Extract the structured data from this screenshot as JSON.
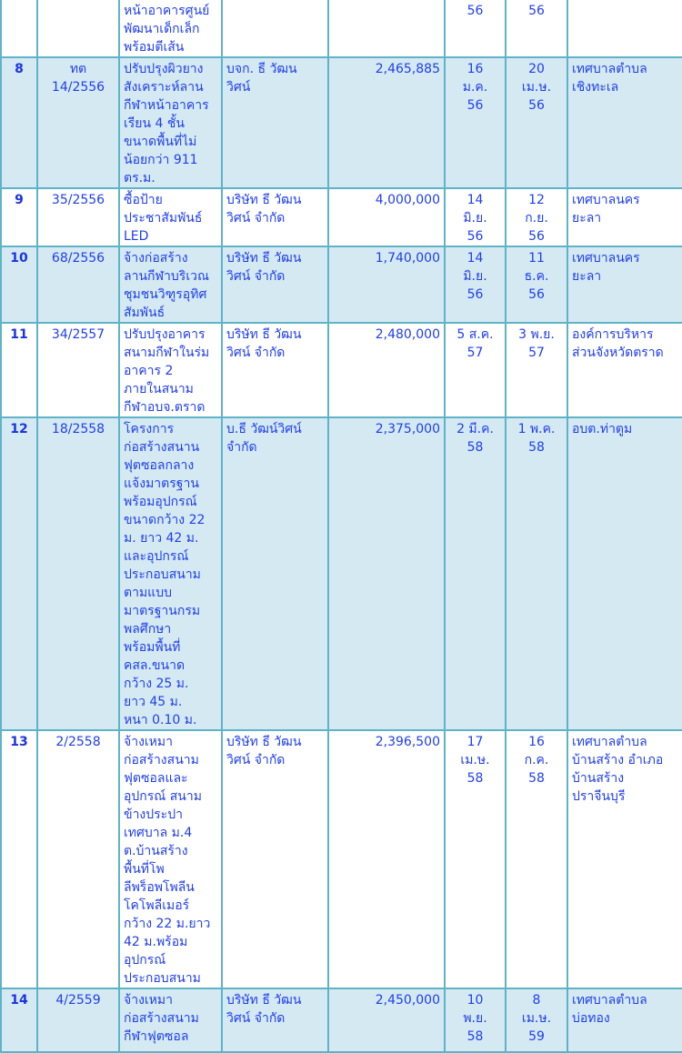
{
  "table": {
    "rows": [
      {
        "no": "",
        "code": "",
        "project": "หน้าอาคารศูนย์\nพัฒนาเด็กเล็ก\nพร้อมตีเส้น",
        "contractor": "",
        "amount": "",
        "start": "56",
        "end": "56",
        "agency": "",
        "bg": "white"
      },
      {
        "no": "8",
        "code": "ทต\n14/2556",
        "project": "ปรับปรุงผิวยาง\nสังเคราะห์ลาน\nกีฬาหน้าอาคาร\nเรียน 4 ชั้น\nขนาดพื้นที่ไม่\nน้อยกว่า 911\nตร.ม.",
        "contractor": "บจก. ธี วัฒน\nวิศน์",
        "amount": "2,465,885",
        "start": "16\nม.ค.\n56",
        "end": "20\nเม.ษ.\n56",
        "agency": "เทศบาลตำบล\nเชิงทะเล",
        "bg": "blue"
      },
      {
        "no": "9",
        "code": "35/2556",
        "project": "ซื้อป้าย\nประชาสัมพันธ์\nLED",
        "contractor": "บริษัท ธี วัฒน\nวิศน์ จำกัด",
        "amount": "4,000,000",
        "start": "14\nมิ.ย.\n56",
        "end": "12\nก.ย.\n56",
        "agency": "เทศบาลนคร\nยะลา",
        "bg": "white"
      },
      {
        "no": "10",
        "code": "68/2556",
        "project": "จ้างก่อสร้าง\nลานกีฬาบริเวณ\nชุมชนวิฑูรอุทิศ\nสัมพันธ์",
        "contractor": "บริษัท ธี วัฒน\nวิศน์ จำกัด",
        "amount": "1,740,000",
        "start": "14\nมิ.ย.\n56",
        "end": "11\nธ.ค.\n56",
        "agency": "เทศบาลนคร\nยะลา",
        "bg": "blue"
      },
      {
        "no": "11",
        "code": "34/2557",
        "project": "ปรับปรุงอาคาร\nสนามกีฬาในร่ม\nอาคาร 2\nภายในสนาม\nกีฬาอบจ.ตราด",
        "contractor": "บริษัท ธี วัฒน\nวิศน์ จำกัด",
        "amount": "2,480,000",
        "start": "5 ส.ค.\n57",
        "end": "3 พ.ย.\n57",
        "agency": "องค์การบริหาร\nส่วนจังหวัดตราด",
        "bg": "white"
      },
      {
        "no": "12",
        "code": "18/2558",
        "project": "โครงการ\nก่อสร้างสนาน\nฟุตซอลกลาง\nแจ้งมาตรฐาน\nพร้อมอุปกรณ์\nขนาดกว้าง 22\nม. ยาว 42 ม.\nและอุปกรณ์\nประกอบสนาม\nตามแบบ\nมาตรฐานกรม\nพลศึกษา\nพร้อมพื้นที่\nคสล.ขนาด\nกว้าง 25 ม.\nยาว 45 ม.\nหนา 0.10 ม.",
        "contractor": "บ.ธี วัฒน์วิศน์\nจำกัด",
        "amount": "2,375,000",
        "start": "2 มี.ค.\n58",
        "end": "1 พ.ค.\n58",
        "agency": "อบต.ท่าตูม",
        "bg": "blue"
      },
      {
        "no": "13",
        "code": "2/2558",
        "project": "จ้างเหมา\nก่อสร้างสนาม\nฟุตซอลและ\nอุปกรณ์ สนาม\nข้างประปา\nเทศบาล ม.4\nต.บ้านสร้าง\nพื้นที่โพ\nลีพร็อพโพลีน\nโคโพลีเมอร์\nกว้าง 22 ม.ยาว\n42 ม.พร้อม\nอุปกรณ์\nประกอบสนาม",
        "contractor": "บริษัท ธี วัฒน\nวิศน์ จำกัด",
        "amount": "2,396,500",
        "start": "17\nเม.ษ.\n58",
        "end": "16\nก.ค.\n58",
        "agency": "เทศบาลตำบล\nบ้านสร้าง อำเภอ\nบ้านสร้าง\nปราจีนบุรี",
        "bg": "white"
      },
      {
        "no": "14",
        "code": "4/2559",
        "project": "จ้างเหมา\nก่อสร้างสนาม\nกีฬาฟุตซอล",
        "contractor": "บริษัท ธี วัฒน\nวิศน์ จำกัด",
        "amount": "2,450,000",
        "start": "10\nพ.ย.\n58",
        "end": "8\nเม.ษ.\n59",
        "agency": "เทศบาลตำบล\nบ่อทอง",
        "bg": "blue"
      }
    ]
  },
  "colors": {
    "text": "#1f3ff0",
    "border": "#5fb3c9",
    "row_alt": "#d4e9f2"
  }
}
